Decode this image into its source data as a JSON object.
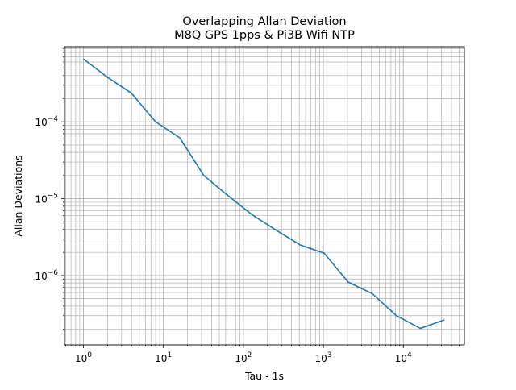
{
  "chart_data": {
    "type": "line",
    "title": "Overlapping Allan Deviation",
    "subtitle": "M8Q GPS 1pps & Pi3B Wifi NTP",
    "xlabel": "Tau - 1s",
    "ylabel": "Allan Deviations",
    "x_scale": "log",
    "y_scale": "log",
    "xlim": [
      0.58,
      58000
    ],
    "ylim": [
      1.25e-07,
      0.00095
    ],
    "grid": true,
    "grid_minor": true,
    "x_ticks": [
      {
        "value": 1,
        "base": "10",
        "exp": "0"
      },
      {
        "value": 10,
        "base": "10",
        "exp": "1"
      },
      {
        "value": 100,
        "base": "10",
        "exp": "2"
      },
      {
        "value": 1000,
        "base": "10",
        "exp": "3"
      },
      {
        "value": 10000,
        "base": "10",
        "exp": "4"
      }
    ],
    "y_ticks": [
      {
        "value": 1e-06,
        "base": "10",
        "exp": "−6"
      },
      {
        "value": 1e-05,
        "base": "10",
        "exp": "−5"
      },
      {
        "value": 0.0001,
        "base": "10",
        "exp": "−4"
      }
    ],
    "series": [
      {
        "color": "#1f77b4",
        "x": [
          1,
          2,
          4,
          8,
          16,
          32,
          64,
          128,
          256,
          512,
          1024,
          2048,
          4096,
          8192,
          16384,
          32768
        ],
        "y": [
          0.00066,
          0.00038,
          0.000235,
          0.0001,
          6.2e-05,
          2e-05,
          1.1e-05,
          6.2e-06,
          3.9e-06,
          2.5e-06,
          1.95e-06,
          8.2e-07,
          5.8e-07,
          3e-07,
          2.05e-07,
          2.65e-07
        ]
      }
    ]
  }
}
